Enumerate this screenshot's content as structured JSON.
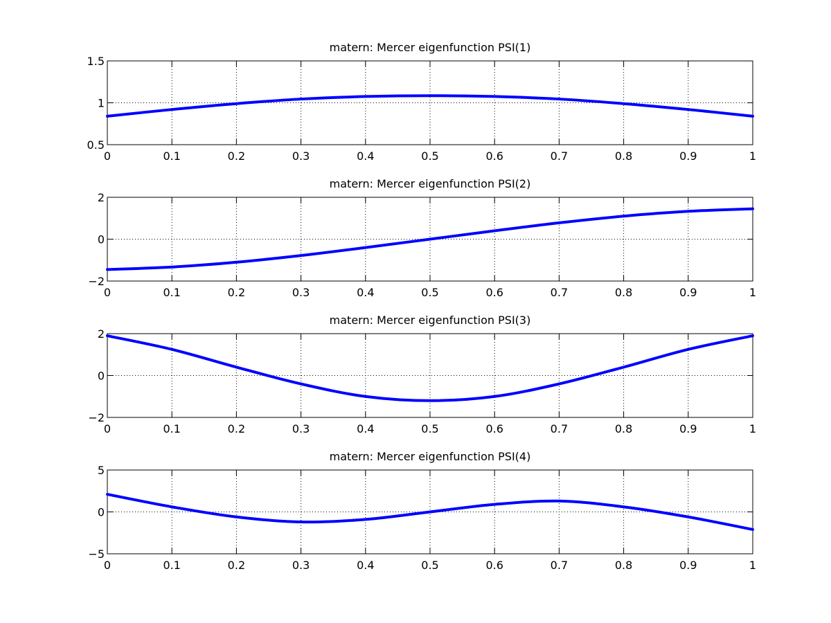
{
  "chart_data": [
    {
      "type": "line",
      "title": "matern: Mercer eigenfunction PSI(1)",
      "xlim": [
        0,
        1
      ],
      "ylim": [
        0.5,
        1.5
      ],
      "xticks": [
        0,
        0.1,
        0.2,
        0.3,
        0.4,
        0.5,
        0.6,
        0.7,
        0.8,
        0.9,
        1
      ],
      "xtick_labels": [
        "0",
        "0.1",
        "0.2",
        "0.3",
        "0.4",
        "0.5",
        "0.6",
        "0.7",
        "0.8",
        "0.9",
        "1"
      ],
      "yticks": [
        0.5,
        1,
        1.5
      ],
      "ytick_labels": [
        "0.5",
        "1",
        "1.5"
      ],
      "grid": true,
      "color": "#0000ff",
      "x": [
        0,
        0.1,
        0.2,
        0.3,
        0.4,
        0.5,
        0.6,
        0.7,
        0.8,
        0.9,
        1
      ],
      "y": [
        0.84,
        0.92,
        0.99,
        1.045,
        1.075,
        1.085,
        1.075,
        1.045,
        0.99,
        0.92,
        0.84
      ]
    },
    {
      "type": "line",
      "title": "matern: Mercer eigenfunction PSI(2)",
      "xlim": [
        0,
        1
      ],
      "ylim": [
        -2,
        2
      ],
      "xticks": [
        0,
        0.1,
        0.2,
        0.3,
        0.4,
        0.5,
        0.6,
        0.7,
        0.8,
        0.9,
        1
      ],
      "xtick_labels": [
        "0",
        "0.1",
        "0.2",
        "0.3",
        "0.4",
        "0.5",
        "0.6",
        "0.7",
        "0.8",
        "0.9",
        "1"
      ],
      "yticks": [
        -2,
        0,
        2
      ],
      "ytick_labels": [
        "−2",
        "0",
        "2"
      ],
      "grid": true,
      "color": "#0000ff",
      "x": [
        0,
        0.1,
        0.2,
        0.3,
        0.4,
        0.5,
        0.6,
        0.7,
        0.8,
        0.9,
        1
      ],
      "y": [
        -1.45,
        -1.33,
        -1.1,
        -0.78,
        -0.4,
        0,
        0.4,
        0.78,
        1.1,
        1.33,
        1.45
      ]
    },
    {
      "type": "line",
      "title": "matern: Mercer eigenfunction PSI(3)",
      "xlim": [
        0,
        1
      ],
      "ylim": [
        -2,
        2
      ],
      "xticks": [
        0,
        0.1,
        0.2,
        0.3,
        0.4,
        0.5,
        0.6,
        0.7,
        0.8,
        0.9,
        1
      ],
      "xtick_labels": [
        "0",
        "0.1",
        "0.2",
        "0.3",
        "0.4",
        "0.5",
        "0.6",
        "0.7",
        "0.8",
        "0.9",
        "1"
      ],
      "yticks": [
        -2,
        0,
        2
      ],
      "ytick_labels": [
        "−2",
        "0",
        "2"
      ],
      "grid": true,
      "color": "#0000ff",
      "x": [
        0,
        0.1,
        0.2,
        0.3,
        0.4,
        0.5,
        0.6,
        0.7,
        0.8,
        0.9,
        1
      ],
      "y": [
        1.9,
        1.25,
        0.4,
        -0.4,
        -1.0,
        -1.2,
        -1.0,
        -0.4,
        0.4,
        1.25,
        1.9
      ]
    },
    {
      "type": "line",
      "title": "matern: Mercer eigenfunction PSI(4)",
      "xlim": [
        0,
        1
      ],
      "ylim": [
        -5,
        5
      ],
      "xticks": [
        0,
        0.1,
        0.2,
        0.3,
        0.4,
        0.5,
        0.6,
        0.7,
        0.8,
        0.9,
        1
      ],
      "xtick_labels": [
        "0",
        "0.1",
        "0.2",
        "0.3",
        "0.4",
        "0.5",
        "0.6",
        "0.7",
        "0.8",
        "0.9",
        "1"
      ],
      "yticks": [
        -5,
        0,
        5
      ],
      "ytick_labels": [
        "−5",
        "0",
        "5"
      ],
      "grid": true,
      "color": "#0000ff",
      "x": [
        0,
        0.1,
        0.2,
        0.3,
        0.4,
        0.5,
        0.6,
        0.7,
        0.8,
        0.9,
        1
      ],
      "y": [
        2.1,
        0.6,
        -0.6,
        -1.2,
        -0.9,
        0,
        0.9,
        1.3,
        0.6,
        -0.6,
        -2.1
      ]
    }
  ]
}
